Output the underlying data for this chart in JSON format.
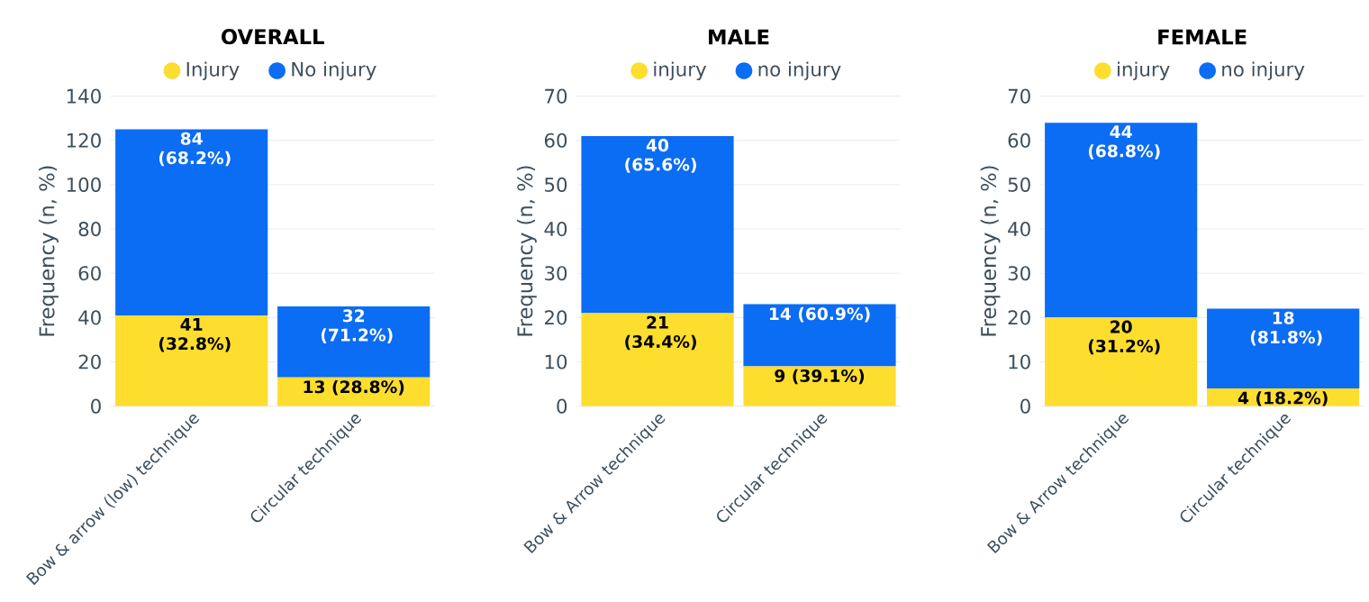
{
  "chart_data": [
    {
      "type": "bar",
      "title": "OVERALL",
      "ylabel": "Frequency (n, %)",
      "categories": [
        "Bow & arrow (low) technique",
        "Circular technique"
      ],
      "stacked": true,
      "legend": "top",
      "grid": "y",
      "ylim": [
        0,
        140
      ],
      "yticks": [
        0,
        20,
        40,
        60,
        80,
        100,
        120,
        140
      ],
      "series": [
        {
          "name": "Injury",
          "color": "#fddd2e",
          "values": [
            41,
            13
          ],
          "value_labels": [
            "41 (32.8%)",
            "13 (28.8%)"
          ]
        },
        {
          "name": "No injury",
          "color": "#0b6cf4",
          "values": [
            84,
            32
          ],
          "value_labels": [
            "84 (68.2%)",
            "32 (71.2%)"
          ]
        }
      ]
    },
    {
      "type": "bar",
      "title": "MALE",
      "ylabel": "Frequency (n, %)",
      "categories": [
        "Bow & Arrow technique",
        "Circular technique"
      ],
      "stacked": true,
      "legend": "top",
      "grid": "y",
      "ylim": [
        0,
        70
      ],
      "yticks": [
        0,
        10,
        20,
        30,
        40,
        50,
        60,
        70
      ],
      "series": [
        {
          "name": "injury",
          "color": "#fddd2e",
          "values": [
            21,
            9
          ],
          "value_labels": [
            "21 (34.4%)",
            "9 (39.1%)"
          ]
        },
        {
          "name": "no injury",
          "color": "#0b6cf4",
          "values": [
            40,
            14
          ],
          "value_labels": [
            "40 (65.6%)",
            "14 (60.9%)"
          ]
        }
      ]
    },
    {
      "type": "bar",
      "title": "FEMALE",
      "ylabel": "Frequency (n, %)",
      "categories": [
        "Bow & Arrow technique",
        "Circular technique"
      ],
      "stacked": true,
      "legend": "top",
      "grid": "y",
      "ylim": [
        0,
        70
      ],
      "yticks": [
        0,
        10,
        20,
        30,
        40,
        50,
        60,
        70
      ],
      "series": [
        {
          "name": "injury",
          "color": "#fddd2e",
          "values": [
            20,
            4
          ],
          "value_labels": [
            "20 (31.2%)",
            "4 (18.2%)"
          ]
        },
        {
          "name": "no injury",
          "color": "#0b6cf4",
          "values": [
            44,
            18
          ],
          "value_labels": [
            "44 (68.8%)",
            "18 (81.8%)"
          ]
        }
      ]
    }
  ]
}
